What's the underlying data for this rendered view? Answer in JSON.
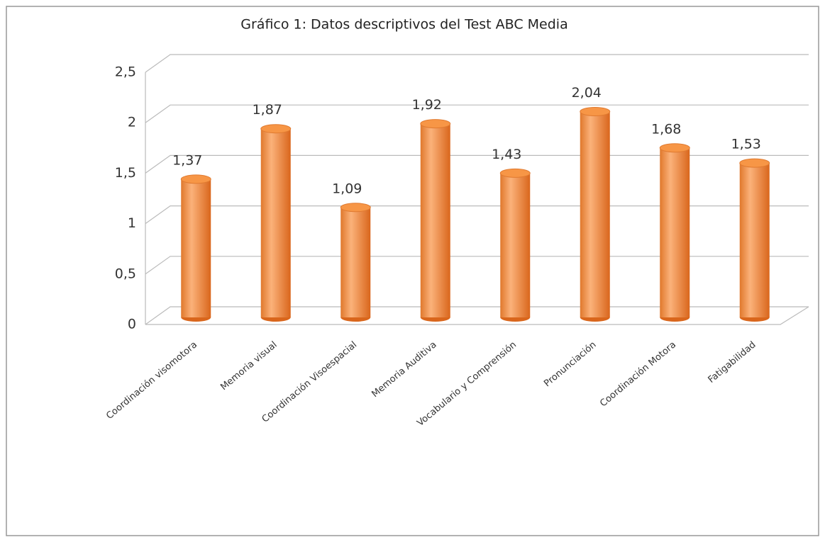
{
  "chart_data": {
    "type": "bar",
    "title": "Gráfico 1: Datos descriptivos del Test ABC Media",
    "categories": [
      "Coordinación visomotora",
      "Memoria visual",
      "Coordinación Visoespacial",
      "Memoria Auditiva",
      "Vocabulario y Comprensión",
      "Pronunciación",
      "Coordinación Motora",
      "Fatigabilidad"
    ],
    "values": [
      1.37,
      1.87,
      1.09,
      1.92,
      1.43,
      2.04,
      1.68,
      1.53
    ],
    "value_labels": [
      "1,37",
      "1,87",
      "1,09",
      "1,92",
      "1,43",
      "2,04",
      "1,68",
      "1,53"
    ],
    "color": "#f79646",
    "ylim": [
      0,
      2.5
    ],
    "yticks": [
      0,
      {
        "value": 0.5,
        "label": "0,5"
      },
      1,
      {
        "value": 1.5,
        "label": "1,5"
      },
      2,
      {
        "value": 2.5,
        "label": "2,5"
      }
    ],
    "grid": true
  }
}
